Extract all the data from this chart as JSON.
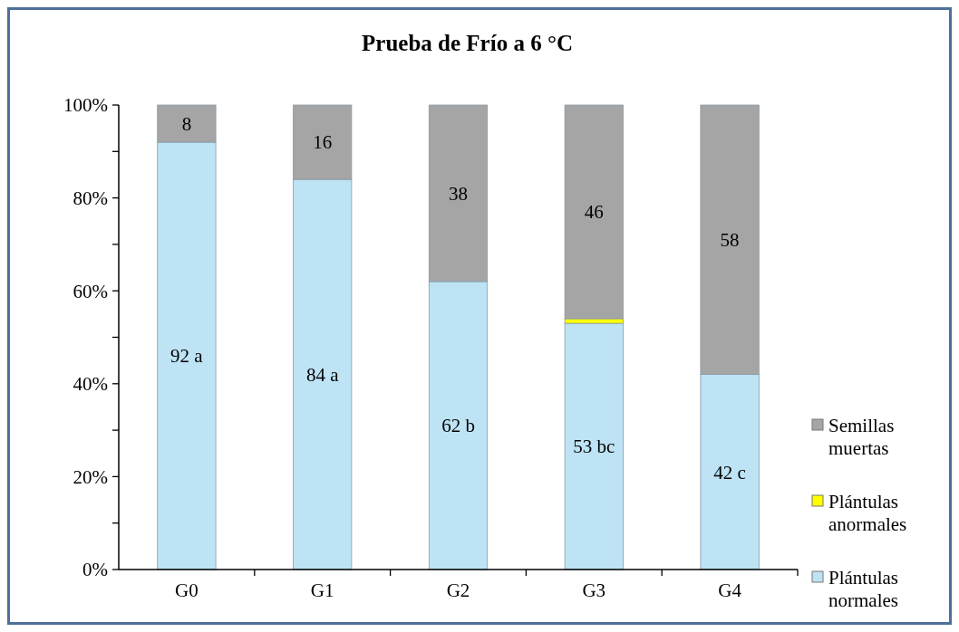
{
  "chart_data": {
    "type": "bar",
    "title": "Prueba de Frío a 6 °C",
    "stacked": true,
    "categories": [
      "G0",
      "G1",
      "G2",
      "G3",
      "G4"
    ],
    "series": [
      {
        "name": "Plántulas normales",
        "color": "#bde3f4",
        "values": [
          92,
          84,
          62,
          53,
          42
        ],
        "value_labels": [
          "92 a",
          "84 a",
          "62 b",
          "53 bc",
          "42 c"
        ]
      },
      {
        "name": "Plántulas anormales",
        "color": "#ffff00",
        "values": [
          0,
          0,
          0,
          1,
          0
        ]
      },
      {
        "name": "Semillas muertas",
        "color": "#a5a5a5",
        "values": [
          8,
          16,
          38,
          46,
          58
        ],
        "value_labels": [
          "8",
          "16",
          "38",
          "46",
          "58"
        ]
      }
    ],
    "ylim": [
      0,
      100
    ],
    "yticks": [
      {
        "value": 0,
        "label": "0%"
      },
      {
        "value": 10,
        "label": null
      },
      {
        "value": 20,
        "label": "20%"
      },
      {
        "value": 30,
        "label": null
      },
      {
        "value": 40,
        "label": "40%"
      },
      {
        "value": 50,
        "label": null
      },
      {
        "value": 60,
        "label": "60%"
      },
      {
        "value": 70,
        "label": null
      },
      {
        "value": 80,
        "label": "80%"
      },
      {
        "value": 90,
        "label": null
      },
      {
        "value": 100,
        "label": "100%"
      }
    ],
    "legend": "right",
    "grid": false
  }
}
